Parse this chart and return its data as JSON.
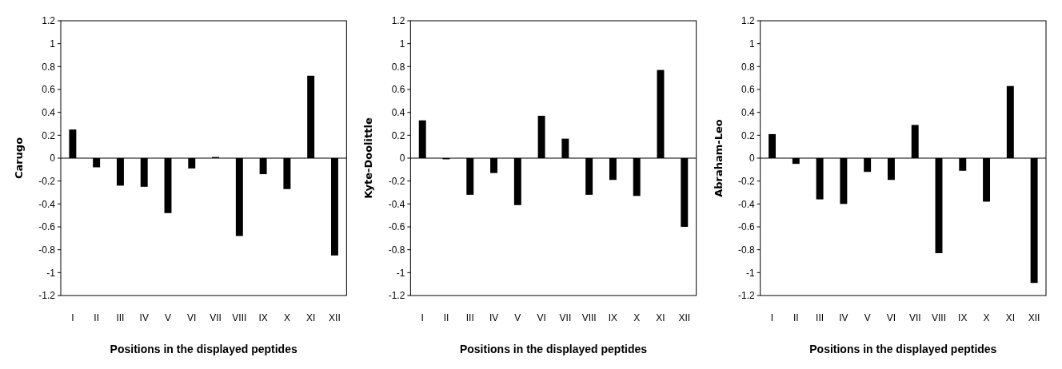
{
  "chart_data": [
    {
      "type": "bar",
      "ylabel": "Carugo",
      "xlabel": "Positions in the displayed peptides",
      "categories": [
        "I",
        "II",
        "III",
        "IV",
        "V",
        "VI",
        "VII",
        "VIII",
        "IX",
        "X",
        "XI",
        "XII"
      ],
      "series": [
        {
          "color": "#000000",
          "values": [
            0.25,
            -0.08,
            -0.24,
            -0.25,
            -0.48,
            -0.09,
            0.01,
            -0.68,
            -0.14,
            -0.27,
            0.72,
            -0.85
          ]
        }
      ],
      "ylim": [
        -1.2,
        1.2
      ],
      "yticks": [
        -1.2,
        -1,
        -0.8,
        -0.6,
        -0.4,
        -0.2,
        0,
        0.2,
        0.4,
        0.6,
        0.8,
        1,
        1.2
      ]
    },
    {
      "type": "bar",
      "ylabel": "Kyte-Doolittle",
      "xlabel": "Positions in the displayed peptides",
      "categories": [
        "I",
        "II",
        "III",
        "IV",
        "V",
        "VI",
        "VII",
        "VIII",
        "IX",
        "X",
        "XI",
        "XII"
      ],
      "series": [
        {
          "color": "#000000",
          "values": [
            0.33,
            -0.01,
            -0.32,
            -0.13,
            -0.41,
            0.37,
            0.17,
            -0.32,
            -0.19,
            -0.33,
            0.77,
            -0.6
          ]
        }
      ],
      "ylim": [
        -1.2,
        1.2
      ],
      "yticks": [
        -1.2,
        -1,
        -0.8,
        -0.6,
        -0.4,
        -0.2,
        0,
        0.2,
        0.4,
        0.6,
        0.8,
        1,
        1.2
      ]
    },
    {
      "type": "bar",
      "ylabel": "Abraham-Leo",
      "xlabel": "Positions in the displayed peptides",
      "categories": [
        "I",
        "II",
        "III",
        "IV",
        "V",
        "VI",
        "VII",
        "VIII",
        "IX",
        "X",
        "XI",
        "XII"
      ],
      "series": [
        {
          "color": "#000000",
          "values": [
            0.21,
            -0.05,
            -0.36,
            -0.4,
            -0.12,
            -0.19,
            0.29,
            -0.83,
            -0.11,
            -0.38,
            0.63,
            -1.09
          ]
        }
      ],
      "ylim": [
        -1.2,
        1.2
      ],
      "yticks": [
        -1.2,
        -1,
        -0.8,
        -0.6,
        -0.4,
        -0.2,
        0,
        0.2,
        0.4,
        0.6,
        0.8,
        1,
        1.2
      ]
    }
  ]
}
